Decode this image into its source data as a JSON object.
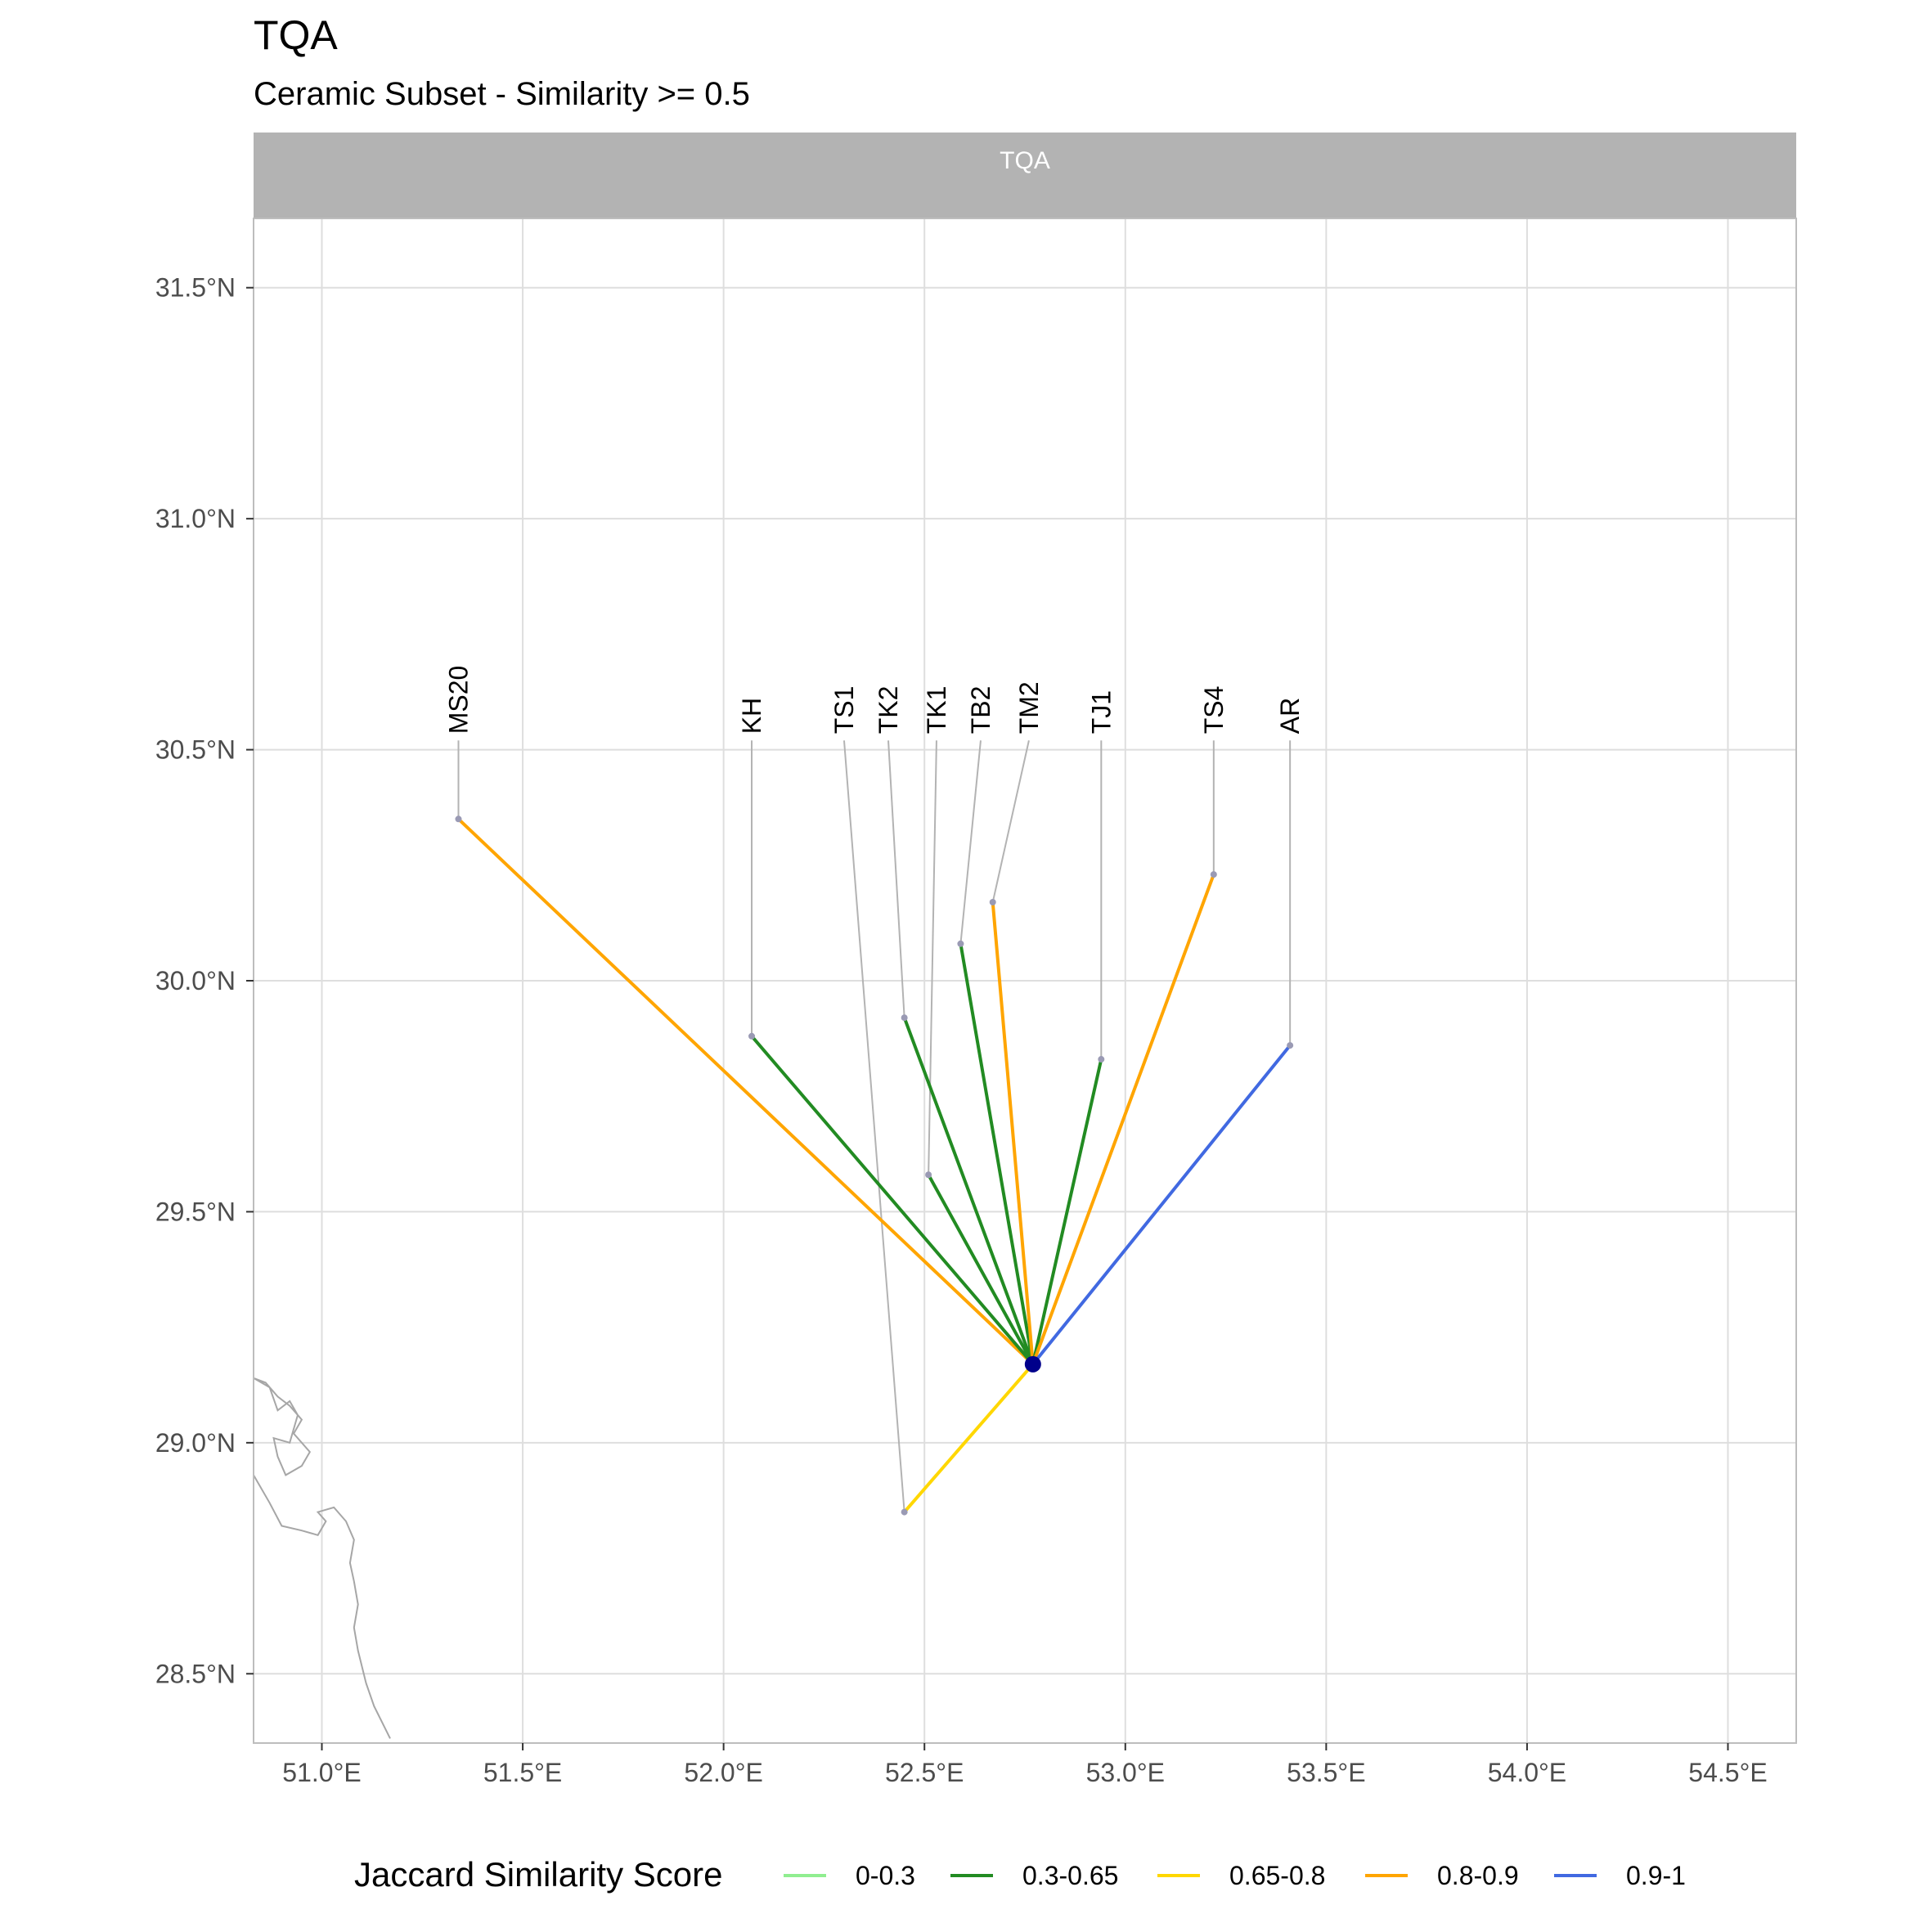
{
  "title": "TQA",
  "subtitle": "Ceramic Subset - Similarity >= 0.5",
  "strip_label": "TQA",
  "chart_data": {
    "type": "map",
    "x_ticks": [
      "51.0°E",
      "51.5°E",
      "52.0°E",
      "52.5°E",
      "53.0°E",
      "53.5°E",
      "54.0°E",
      "54.5°E"
    ],
    "x_tick_values": [
      51.0,
      51.5,
      52.0,
      52.5,
      53.0,
      53.5,
      54.0,
      54.5
    ],
    "y_ticks": [
      "31.5°N",
      "31.0°N",
      "30.5°N",
      "30.0°N",
      "29.5°N",
      "29.0°N",
      "28.5°N"
    ],
    "y_tick_values": [
      31.5,
      31.0,
      30.5,
      30.0,
      29.5,
      29.0,
      28.5
    ],
    "xlim": [
      50.83,
      54.67
    ],
    "ylim": [
      28.35,
      31.65
    ],
    "grid": true,
    "legend_position": "bottom",
    "origin": {
      "name": "TQA",
      "lon": 52.77,
      "lat": 29.17
    },
    "label_lat": 30.52,
    "sites": [
      {
        "name": "MS20",
        "lon": 51.34,
        "lat": 30.35,
        "label_lon": 51.34,
        "category": "0.8-0.9"
      },
      {
        "name": "KH",
        "lon": 52.07,
        "lat": 29.88,
        "label_lon": 52.07,
        "category": "0.3-0.65"
      },
      {
        "name": "TS1",
        "lon": 52.45,
        "lat": 28.85,
        "label_lon": 52.3,
        "category": "0.65-0.8"
      },
      {
        "name": "TK2",
        "lon": 52.45,
        "lat": 29.92,
        "label_lon": 52.41,
        "category": "0.3-0.65"
      },
      {
        "name": "TK1",
        "lon": 52.51,
        "lat": 29.58,
        "label_lon": 52.53,
        "category": "0.3-0.65"
      },
      {
        "name": "TB2",
        "lon": 52.59,
        "lat": 30.08,
        "label_lon": 52.64,
        "category": "0.3-0.65"
      },
      {
        "name": "TM2",
        "lon": 52.67,
        "lat": 30.17,
        "label_lon": 52.76,
        "category": "0.8-0.9"
      },
      {
        "name": "TJ1",
        "lon": 52.94,
        "lat": 29.83,
        "label_lon": 52.94,
        "category": "0.3-0.65"
      },
      {
        "name": "TS4",
        "lon": 53.22,
        "lat": 30.23,
        "label_lon": 53.22,
        "category": "0.8-0.9"
      },
      {
        "name": "AR",
        "lon": 53.41,
        "lat": 29.86,
        "label_lon": 53.41,
        "category": "0.9-1"
      }
    ],
    "coastline": [
      [
        [
          50.83,
          29.14
        ],
        [
          50.87,
          29.12
        ],
        [
          50.89,
          29.07
        ],
        [
          50.92,
          29.09
        ],
        [
          50.94,
          29.06
        ],
        [
          50.92,
          29.0
        ],
        [
          50.88,
          29.01
        ],
        [
          50.89,
          28.97
        ],
        [
          50.91,
          28.93
        ],
        [
          50.95,
          28.95
        ],
        [
          50.97,
          28.98
        ],
        [
          50.93,
          29.02
        ],
        [
          50.95,
          29.05
        ],
        [
          50.92,
          29.08
        ],
        [
          50.89,
          29.1
        ],
        [
          50.86,
          29.13
        ],
        [
          50.83,
          29.14
        ]
      ],
      [
        [
          50.83,
          28.93
        ],
        [
          50.87,
          28.87
        ],
        [
          50.9,
          28.82
        ],
        [
          50.95,
          28.81
        ],
        [
          50.99,
          28.8
        ],
        [
          51.01,
          28.83
        ],
        [
          50.99,
          28.85
        ],
        [
          51.03,
          28.86
        ],
        [
          51.06,
          28.83
        ],
        [
          51.08,
          28.79
        ],
        [
          51.07,
          28.74
        ],
        [
          51.08,
          28.7
        ],
        [
          51.09,
          28.65
        ],
        [
          51.08,
          28.6
        ],
        [
          51.09,
          28.55
        ],
        [
          51.11,
          28.48
        ],
        [
          51.13,
          28.43
        ],
        [
          51.17,
          28.36
        ]
      ]
    ],
    "categories": [
      "0-0.3",
      "0.3-0.65",
      "0.65-0.8",
      "0.8-0.9",
      "0.9-1"
    ],
    "colors": {
      "0-0.3": "#90EE90",
      "0.3-0.65": "#228B22",
      "0.65-0.8": "#FFD700",
      "0.8-0.9": "#FFA500",
      "0.9-1": "#4169E1"
    },
    "origin_color": "#00008B",
    "point_color": "#9A9AB4",
    "leader_color": "#B3B3B3",
    "grid_color": "#DEDEDE",
    "border_color": "#BDBDBD",
    "strip_color": "#B3B3B3",
    "coast_color": "#A6A6A6",
    "legend_title": "Jaccard Similarity Score"
  }
}
